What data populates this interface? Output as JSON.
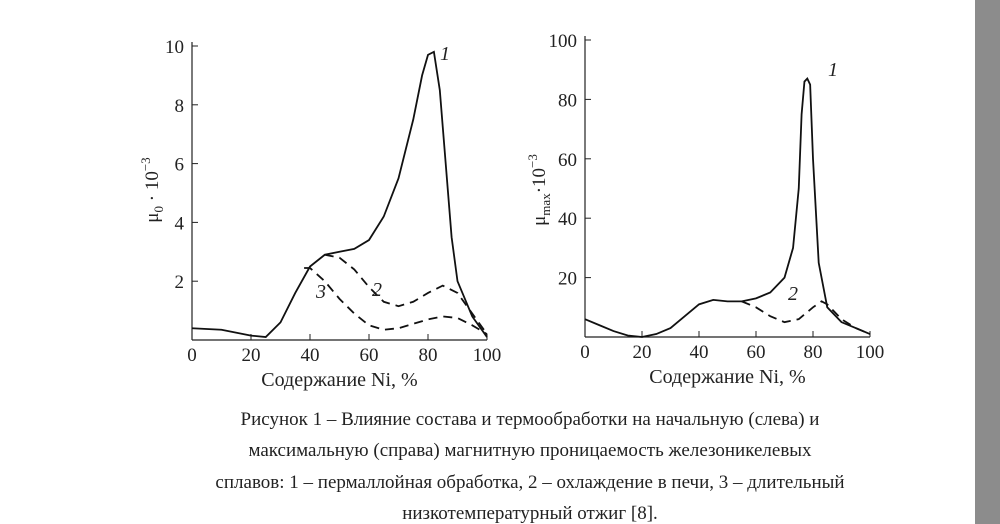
{
  "chart_data": [
    {
      "type": "line",
      "xlabel": "Содержание Ni, %",
      "ylabel": {
        "symbol": "μ",
        "sub": "0",
        "mid": " · 10",
        "sup": "−3"
      },
      "xlim": [
        0,
        100
      ],
      "xticks": [
        0,
        20,
        40,
        60,
        80,
        100
      ],
      "ylim": [
        0,
        10
      ],
      "yticks": [
        2,
        4,
        6,
        8,
        10
      ],
      "series": [
        {
          "name": "1",
          "color": "#111111",
          "dash": false,
          "x": [
            0,
            10,
            20,
            25,
            30,
            35,
            40,
            45,
            50,
            55,
            60,
            65,
            70,
            75,
            78,
            80,
            82,
            84,
            86,
            88,
            90,
            95,
            100
          ],
          "values": [
            0.4,
            0.35,
            0.15,
            0.1,
            0.6,
            1.6,
            2.5,
            2.9,
            3.0,
            3.1,
            3.4,
            4.2,
            5.5,
            7.5,
            9.0,
            9.7,
            9.8,
            8.5,
            6.0,
            3.5,
            2.0,
            0.8,
            0.1
          ]
        },
        {
          "name": "2",
          "color": "#111111",
          "dash": true,
          "x": [
            45,
            50,
            55,
            60,
            65,
            70,
            75,
            80,
            85,
            90,
            95,
            100
          ],
          "values": [
            2.9,
            2.8,
            2.4,
            1.8,
            1.3,
            1.15,
            1.3,
            1.6,
            1.85,
            1.6,
            0.9,
            0.2
          ]
        },
        {
          "name": "3",
          "color": "#111111",
          "dash": true,
          "x": [
            38,
            40,
            45,
            50,
            55,
            60,
            65,
            70,
            75,
            80,
            85,
            90,
            95,
            100
          ],
          "values": [
            2.45,
            2.45,
            2.0,
            1.4,
            0.9,
            0.5,
            0.35,
            0.4,
            0.55,
            0.7,
            0.8,
            0.75,
            0.5,
            0.2
          ]
        }
      ]
    },
    {
      "type": "line",
      "xlabel": "Содержание Ni, %",
      "ylabel": {
        "symbol": "μ",
        "sub": "max",
        "mid": "·10",
        "sup": "−3"
      },
      "xlim": [
        0,
        100
      ],
      "xticks": [
        0,
        20,
        40,
        60,
        80,
        100
      ],
      "ylim": [
        0,
        100
      ],
      "yticks": [
        20,
        40,
        60,
        80,
        100
      ],
      "series": [
        {
          "name": "1",
          "color": "#111111",
          "dash": false,
          "x": [
            0,
            5,
            10,
            15,
            20,
            25,
            30,
            35,
            40,
            45,
            50,
            55,
            60,
            65,
            70,
            73,
            75,
            76,
            77,
            78,
            79,
            80,
            82,
            85,
            90,
            95,
            100
          ],
          "values": [
            6,
            4,
            2,
            0.5,
            0,
            1,
            3,
            7,
            11,
            12.5,
            12,
            12,
            13,
            15,
            20,
            30,
            50,
            75,
            86,
            87,
            85,
            60,
            25,
            10,
            5,
            3,
            1
          ]
        },
        {
          "name": "2",
          "color": "#111111",
          "dash": true,
          "x": [
            55,
            60,
            65,
            70,
            75,
            80,
            83,
            85,
            90,
            95,
            100
          ],
          "values": [
            12,
            10,
            7,
            5,
            6,
            10,
            12,
            11,
            6,
            3,
            1
          ]
        }
      ]
    }
  ],
  "caption": [
    "Рисунок 1 – Влияние состава и термообработки на начальную (слева) и",
    "максимальную (справа) магнитную проницаемость железоникелевых",
    "сплавов: 1 – пермаллойная обработка, 2 – охлаждение в печи, 3 – длительный",
    "низкотемпературный отжиг [8]."
  ]
}
